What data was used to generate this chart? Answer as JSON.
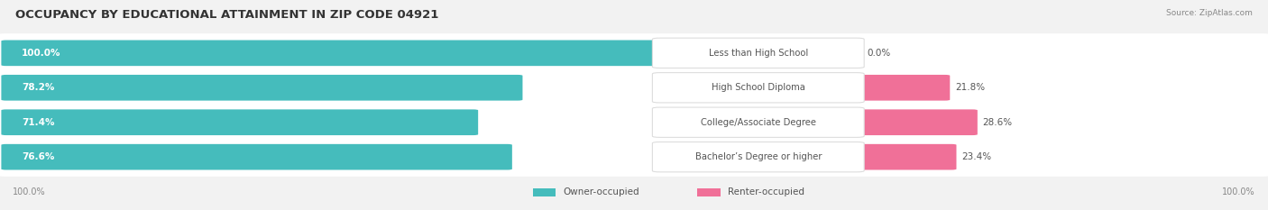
{
  "title": "OCCUPANCY BY EDUCATIONAL ATTAINMENT IN ZIP CODE 04921",
  "source": "Source: ZipAtlas.com",
  "categories": [
    "Less than High School",
    "High School Diploma",
    "College/Associate Degree",
    "Bachelor’s Degree or higher"
  ],
  "owner_pct": [
    100.0,
    78.2,
    71.4,
    76.6
  ],
  "renter_pct": [
    0.0,
    21.8,
    28.6,
    23.4
  ],
  "owner_color": "#45BCBC",
  "renter_color": "#F07098",
  "bg_color": "#f2f2f2",
  "row_bg_color": "#ffffff",
  "title_fontsize": 9.5,
  "source_fontsize": 6.5,
  "label_fontsize": 7.2,
  "pct_fontsize": 7.5,
  "legend_fontsize": 7.5,
  "x_left_label": "100.0%",
  "x_right_label": "100.0%"
}
